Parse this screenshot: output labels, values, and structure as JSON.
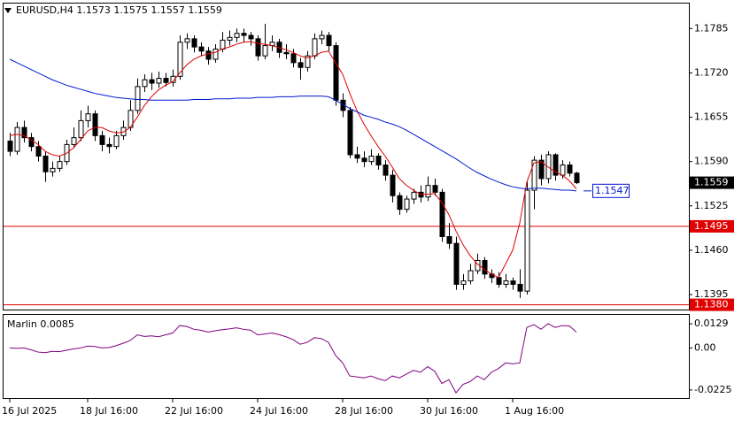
{
  "chart_data": [
    {
      "type": "candlestick",
      "title": "EURUSD,H4  1.1573 1.1575 1.1557 1.1559",
      "categories": [
        "16 Jul 2025",
        null,
        null,
        null,
        null,
        null,
        null,
        null,
        null,
        null,
        null,
        "18 Jul 16:00",
        null,
        null,
        null,
        null,
        null,
        null,
        null,
        null,
        null,
        null,
        null,
        "22 Jul 16:00",
        null,
        null,
        null,
        null,
        null,
        null,
        null,
        null,
        null,
        null,
        null,
        "24 Jul 16:00",
        null,
        null,
        null,
        null,
        null,
        null,
        null,
        null,
        null,
        null,
        null,
        "28 Jul 16:00",
        null,
        null,
        null,
        null,
        null,
        null,
        null,
        null,
        null,
        null,
        null,
        "30 Jul 16:00",
        null,
        null,
        null,
        null,
        null,
        null,
        null,
        null,
        null,
        null,
        null,
        "1 Aug 16:00",
        null,
        null,
        null,
        null,
        null,
        null,
        null,
        null,
        null
      ],
      "open": [
        1.162,
        1.1605,
        1.164,
        1.1625,
        1.1612,
        1.1598,
        1.1575,
        1.158,
        1.159,
        1.1615,
        1.1625,
        1.165,
        1.166,
        1.1628,
        1.1615,
        1.1612,
        1.1628,
        1.164,
        1.1665,
        1.17,
        1.171,
        1.1705,
        1.1712,
        1.1706,
        1.1715,
        1.1765,
        1.177,
        1.1758,
        1.1752,
        1.174,
        1.1755,
        1.1768,
        1.1772,
        1.1778,
        1.1775,
        1.177,
        1.1745,
        1.176,
        1.1765,
        1.175,
        1.1748,
        1.1735,
        1.1728,
        1.1745,
        1.177,
        1.1775,
        1.176,
        1.168,
        1.1665,
        1.16,
        1.1595,
        1.159,
        1.1598,
        1.1585,
        1.157,
        1.154,
        1.152,
        1.1535,
        1.1545,
        1.1538,
        1.1555,
        1.1545,
        1.148,
        1.147,
        1.141,
        1.1415,
        1.143,
        1.1445,
        1.1425,
        1.142,
        1.141,
        1.1415,
        1.141,
        1.14,
        1.1548,
        1.1592,
        1.1565,
        1.16,
        1.157,
        1.1585,
        1.1573
      ],
      "high": [
        1.1632,
        1.1648,
        1.165,
        1.1632,
        1.162,
        1.1605,
        1.159,
        1.1598,
        1.1622,
        1.164,
        1.1665,
        1.1672,
        1.1665,
        1.1635,
        1.1625,
        1.1635,
        1.165,
        1.168,
        1.1712,
        1.1718,
        1.172,
        1.1722,
        1.172,
        1.1725,
        1.1775,
        1.1778,
        1.1775,
        1.1765,
        1.1758,
        1.1762,
        1.178,
        1.1782,
        1.1785,
        1.1785,
        1.178,
        1.1775,
        1.1792,
        1.1775,
        1.177,
        1.1762,
        1.1755,
        1.1742,
        1.1752,
        1.1778,
        1.1782,
        1.178,
        1.1765,
        1.169,
        1.167,
        1.1612,
        1.1605,
        1.1608,
        1.1602,
        1.1592,
        1.1578,
        1.1545,
        1.154,
        1.155,
        1.1555,
        1.1568,
        1.1565,
        1.155,
        1.15,
        1.148,
        1.1425,
        1.144,
        1.1455,
        1.145,
        1.1432,
        1.1428,
        1.1425,
        1.142,
        1.1432,
        1.156,
        1.1598,
        1.16,
        1.1605,
        1.1602,
        1.1592,
        1.159,
        1.1575
      ],
      "low": [
        1.1598,
        1.16,
        1.1618,
        1.1605,
        1.159,
        1.156,
        1.1568,
        1.1575,
        1.1585,
        1.161,
        1.162,
        1.164,
        1.162,
        1.1605,
        1.1602,
        1.1608,
        1.1622,
        1.1635,
        1.166,
        1.1692,
        1.1695,
        1.1698,
        1.17,
        1.17,
        1.171,
        1.1755,
        1.175,
        1.1745,
        1.1732,
        1.1735,
        1.175,
        1.176,
        1.1765,
        1.1765,
        1.176,
        1.1738,
        1.174,
        1.1752,
        1.1742,
        1.174,
        1.1728,
        1.171,
        1.1722,
        1.174,
        1.1762,
        1.1752,
        1.1672,
        1.1655,
        1.1595,
        1.1588,
        1.1582,
        1.1585,
        1.1578,
        1.1562,
        1.153,
        1.1512,
        1.1515,
        1.1528,
        1.153,
        1.1532,
        1.154,
        1.1472,
        1.1462,
        1.1402,
        1.1402,
        1.141,
        1.1425,
        1.1418,
        1.1412,
        1.1405,
        1.1405,
        1.1402,
        1.139,
        1.1395,
        1.152,
        1.1555,
        1.1558,
        1.1562,
        1.1565,
        1.1568,
        1.1557
      ],
      "close": [
        1.1605,
        1.164,
        1.1625,
        1.1612,
        1.1598,
        1.1575,
        1.158,
        1.159,
        1.1615,
        1.1625,
        1.165,
        1.166,
        1.1628,
        1.1615,
        1.1612,
        1.1628,
        1.164,
        1.1665,
        1.17,
        1.171,
        1.1705,
        1.1712,
        1.1706,
        1.1715,
        1.1765,
        1.177,
        1.1758,
        1.1752,
        1.174,
        1.1755,
        1.1768,
        1.1772,
        1.1778,
        1.1775,
        1.177,
        1.1745,
        1.176,
        1.1765,
        1.175,
        1.1748,
        1.1735,
        1.1728,
        1.1745,
        1.177,
        1.1775,
        1.176,
        1.168,
        1.1665,
        1.16,
        1.1595,
        1.159,
        1.1598,
        1.1585,
        1.157,
        1.154,
        1.152,
        1.1535,
        1.1545,
        1.1538,
        1.1555,
        1.1545,
        1.148,
        1.147,
        1.141,
        1.1415,
        1.143,
        1.1445,
        1.1425,
        1.142,
        1.141,
        1.1415,
        1.141,
        1.14,
        1.1548,
        1.1592,
        1.1565,
        1.16,
        1.157,
        1.1585,
        1.1573,
        1.1559
      ],
      "overlays": [
        {
          "color": "#e00000",
          "values": [
            1.1628,
            1.163,
            1.1628,
            1.1622,
            1.1615,
            1.1605,
            1.16,
            1.1598,
            1.1602,
            1.161,
            1.1622,
            1.1635,
            1.164,
            1.164,
            1.1635,
            1.1632,
            1.1633,
            1.164,
            1.1655,
            1.1672,
            1.1685,
            1.1695,
            1.1702,
            1.1707,
            1.172,
            1.1732,
            1.174,
            1.1745,
            1.1748,
            1.175,
            1.1755,
            1.1758,
            1.1762,
            1.1765,
            1.1766,
            1.1763,
            1.1762,
            1.176,
            1.1757,
            1.1754,
            1.175,
            1.1745,
            1.1742,
            1.1745,
            1.175,
            1.1752,
            1.1735,
            1.1718,
            1.169,
            1.1665,
            1.1645,
            1.1628,
            1.1612,
            1.1598,
            1.1582,
            1.1565,
            1.1555,
            1.1548,
            1.1542,
            1.1542,
            1.1543,
            1.153,
            1.1512,
            1.1488,
            1.1468,
            1.1452,
            1.144,
            1.1432,
            1.1425,
            1.142,
            1.144,
            1.146,
            1.15,
            1.156,
            1.1588,
            1.159,
            1.1582,
            1.1575,
            1.157,
            1.1562,
            1.155
          ]
        },
        {
          "color": "#0018d0",
          "values": [
            1.174,
            1.1735,
            1.173,
            1.1725,
            1.172,
            1.1715,
            1.171,
            1.1706,
            1.1702,
            1.1699,
            1.1696,
            1.1693,
            1.169,
            1.1688,
            1.1686,
            1.1684,
            1.1683,
            1.1682,
            1.1681,
            1.1681,
            1.168,
            1.168,
            1.168,
            1.168,
            1.168,
            1.168,
            1.1681,
            1.1681,
            1.1681,
            1.1682,
            1.1682,
            1.1682,
            1.1683,
            1.1683,
            1.1683,
            1.1684,
            1.1684,
            1.1684,
            1.1685,
            1.1685,
            1.1685,
            1.1686,
            1.1686,
            1.1686,
            1.1686,
            1.1685,
            1.168,
            1.1674,
            1.1668,
            1.1663,
            1.1658,
            1.1655,
            1.1652,
            1.1648,
            1.1645,
            1.1641,
            1.1636,
            1.163,
            1.1624,
            1.1618,
            1.1612,
            1.1606,
            1.16,
            1.1594,
            1.1587,
            1.158,
            1.1574,
            1.1569,
            1.1564,
            1.156,
            1.1556,
            1.1553,
            1.1551,
            1.155,
            1.1551,
            1.1551,
            1.155,
            1.1549,
            1.1548,
            1.1548,
            1.1547
          ]
        }
      ],
      "levels": [
        1.1495,
        {
          "value": 1.138,
          "label": "1.1380"
        }
      ],
      "level_color": "#e00000",
      "up_color": "#ffffff",
      "down_color": "#000000",
      "ylim": [
        1.1373,
        1.1823
      ],
      "yticks": [
        1.1785,
        {
          "value": 1.172,
          "label": "1.1720"
        },
        1.1655,
        {
          "value": 1.159,
          "label": "1.1590"
        },
        1.1525,
        {
          "value": 1.146,
          "label": "1.1460"
        },
        1.1395
      ]
    },
    {
      "type": "line",
      "title": "Marlin 0.0085",
      "color": "#800080",
      "values": [
        0.0,
        -0.0002,
        0.0,
        -0.001,
        -0.0022,
        -0.0025,
        -0.0018,
        -0.002,
        -0.0012,
        -0.0005,
        0.0,
        0.001,
        0.0008,
        0.0,
        0.0002,
        0.0012,
        0.0025,
        0.004,
        0.007,
        0.0062,
        0.0065,
        0.006,
        0.007,
        0.008,
        0.012,
        0.0115,
        0.01,
        0.0095,
        0.0085,
        0.0092,
        0.0098,
        0.0102,
        0.0108,
        0.01,
        0.0095,
        0.007,
        0.0075,
        0.008,
        0.0072,
        0.006,
        0.0045,
        0.002,
        0.003,
        0.0055,
        0.005,
        0.003,
        -0.004,
        -0.008,
        -0.015,
        -0.0155,
        -0.016,
        -0.015,
        -0.0165,
        -0.0175,
        -0.015,
        -0.016,
        -0.014,
        -0.012,
        -0.013,
        -0.01,
        -0.0125,
        -0.019,
        -0.017,
        -0.024,
        -0.0195,
        -0.018,
        -0.015,
        -0.017,
        -0.013,
        -0.011,
        -0.008,
        -0.0085,
        -0.008,
        0.011,
        0.0125,
        0.01,
        0.013,
        0.011,
        0.012,
        0.0118,
        0.0085
      ],
      "ylim": [
        -0.0268,
        0.0182
      ],
      "yticks": [
        0.0129,
        {
          "value": 0,
          "label": "0.00"
        },
        -0.0225
      ]
    }
  ]
}
